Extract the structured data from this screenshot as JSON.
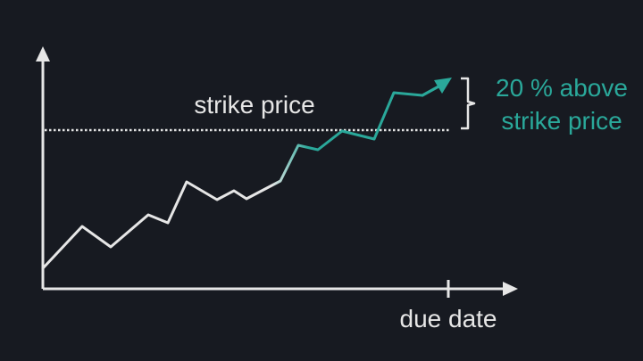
{
  "diagram": {
    "strike_label": "strike price",
    "due_label": "due date",
    "above_label_line1": "20 % above",
    "above_label_line2": "strike price",
    "colors": {
      "background": "#171a21",
      "foreground": "#e6e6e6",
      "accent": "#2aa89a"
    }
  }
}
